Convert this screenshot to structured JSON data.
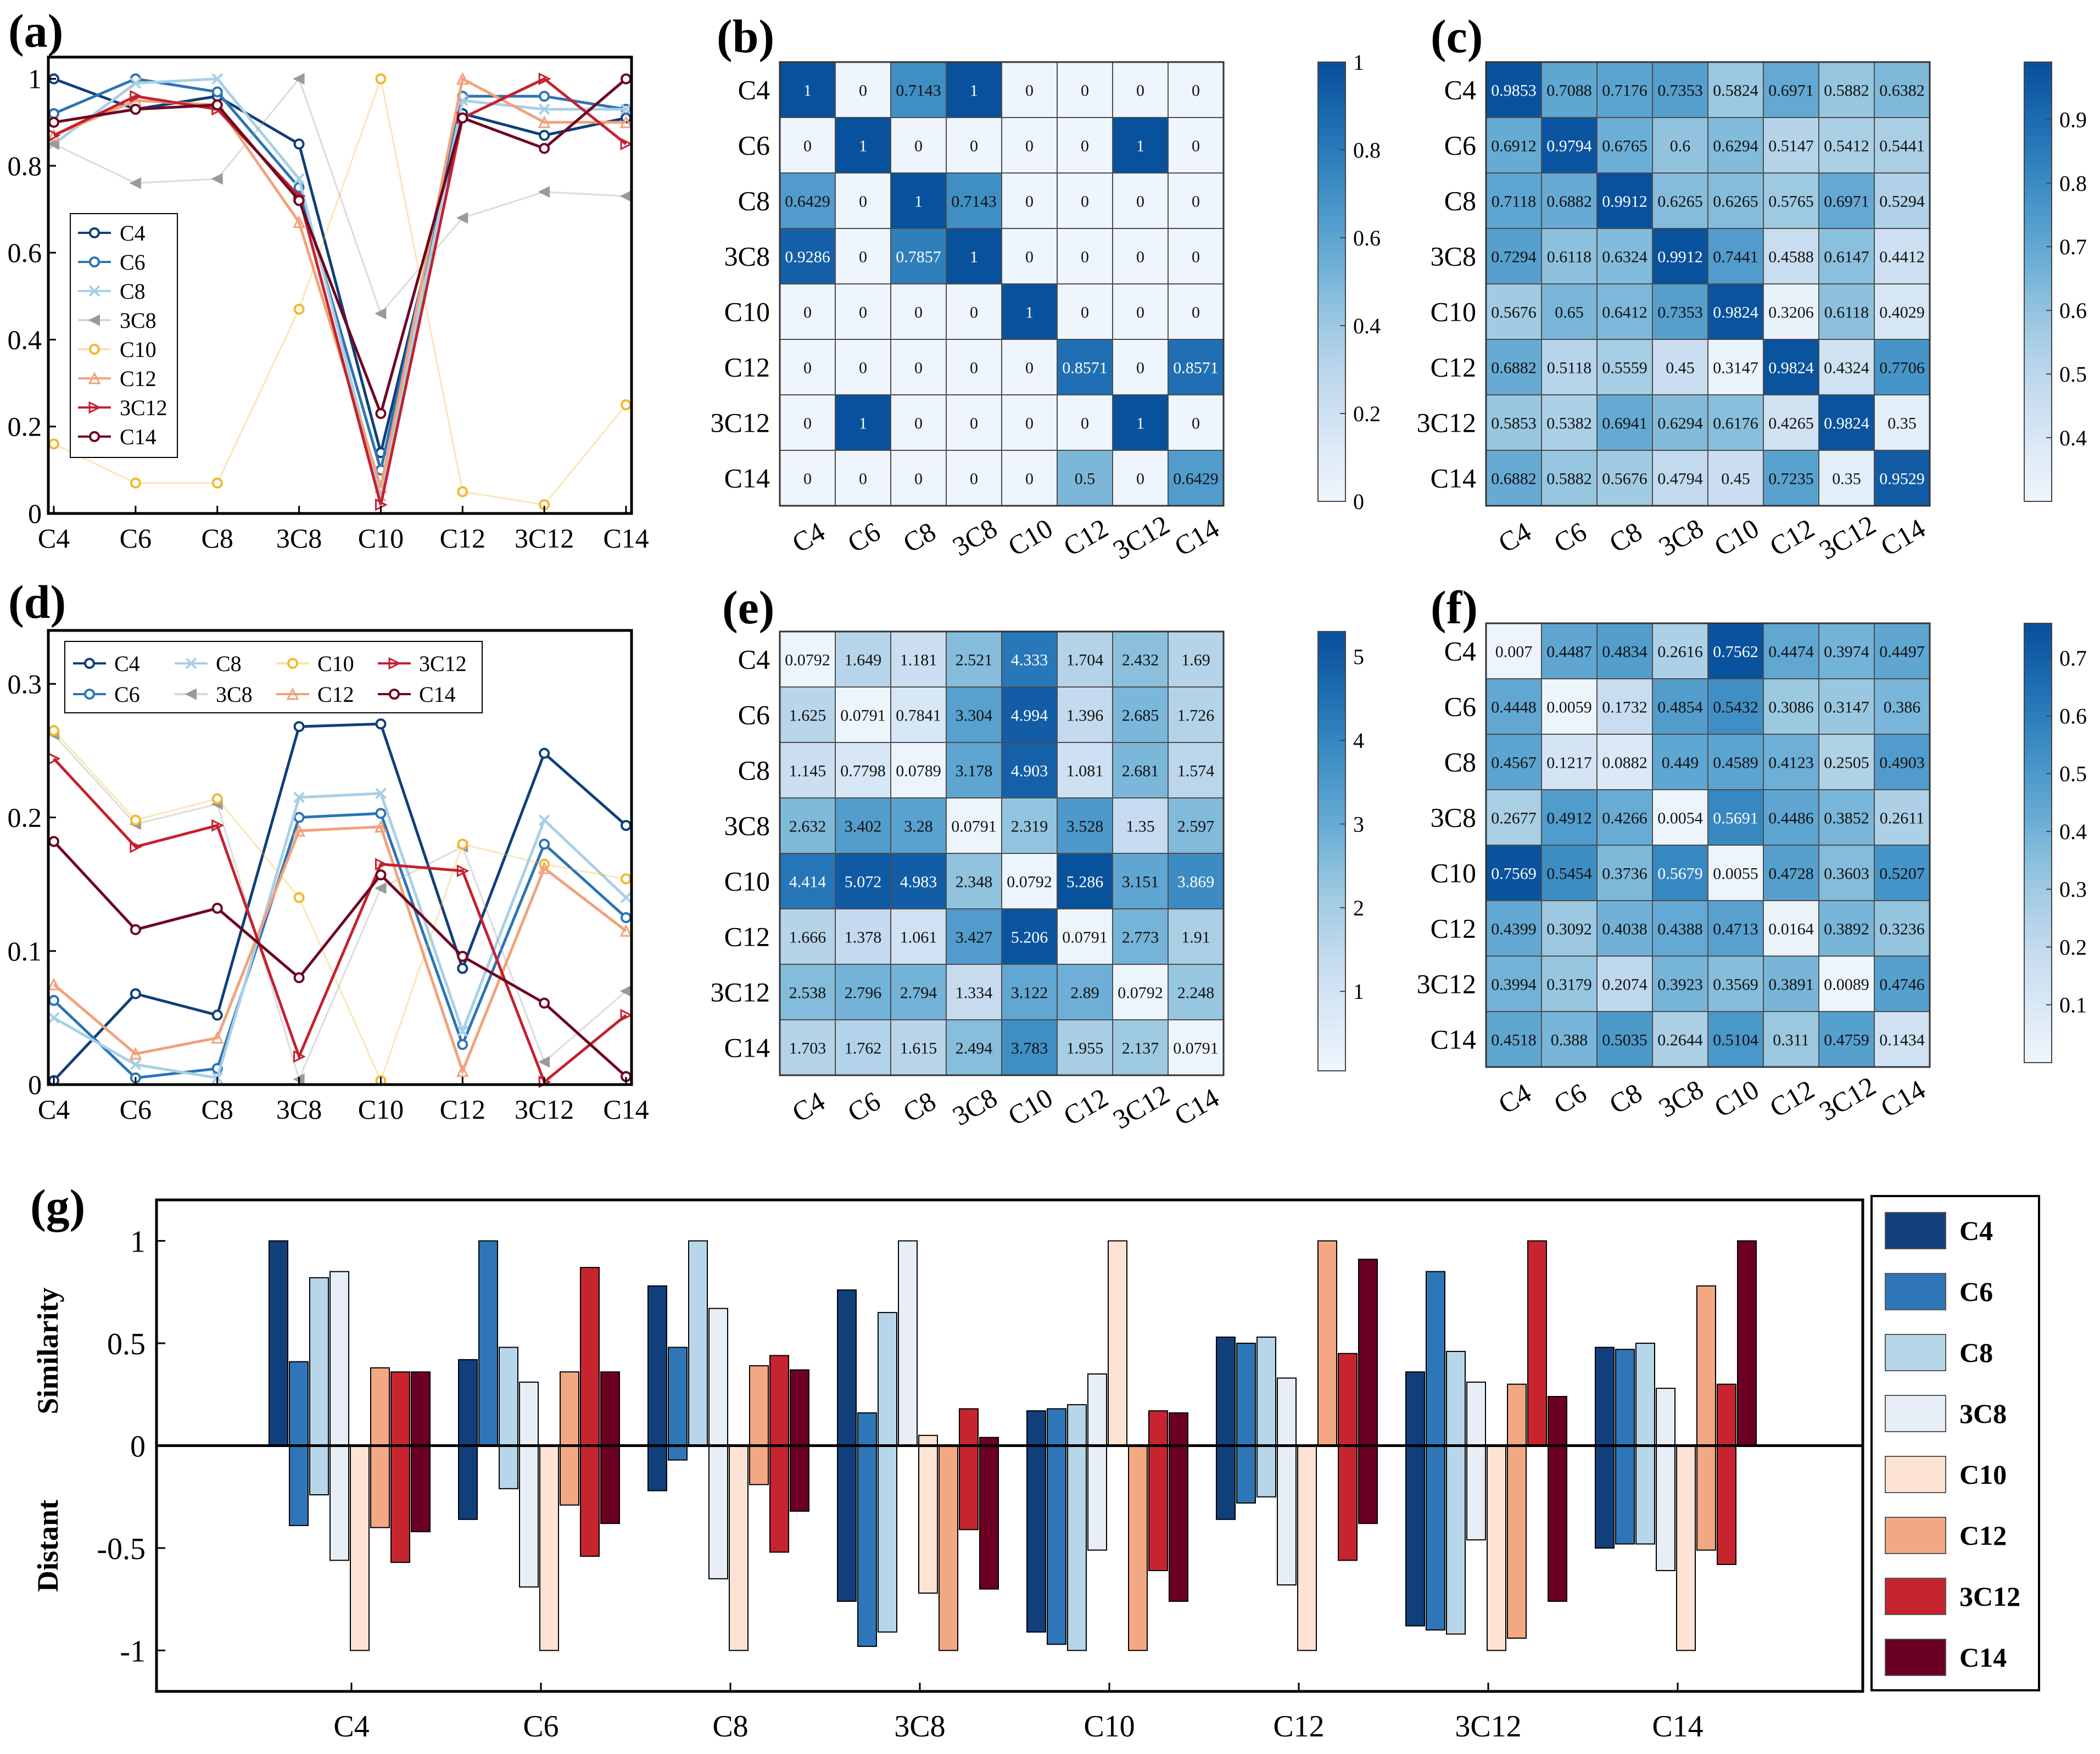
{
  "labels": {
    "a": "(a)",
    "b": "(b)",
    "c": "(c)",
    "d": "(d)",
    "e": "(e)",
    "f": "(f)",
    "g": "(g)"
  },
  "categories": [
    "C4",
    "C6",
    "C8",
    "3C8",
    "C10",
    "C12",
    "3C12",
    "C14"
  ],
  "series_colors": {
    "C4": "#0e3f7a",
    "C6": "#2c74b5",
    "C8": "#a8cfe6",
    "3C8": "#9a9a9a",
    "C10": "#f2b833",
    "C12": "#f1a27a",
    "3C12": "#c4212f",
    "C14": "#6e0620"
  },
  "bar_colors": {
    "C4": "#113f7b",
    "C6": "#2f76b8",
    "C8": "#b7d6ea",
    "3C8": "#e7eef6",
    "C10": "#fde3d3",
    "C12": "#f3a884",
    "3C12": "#c6252f",
    "C14": "#6b0022"
  },
  "chart_data": [
    {
      "id": "a",
      "type": "line",
      "categories": [
        "C4",
        "C6",
        "C8",
        "3C8",
        "C10",
        "C12",
        "3C12",
        "C14"
      ],
      "ylim": [
        0,
        1.05
      ],
      "yticks": [
        "0",
        "0.2",
        "0.4",
        "0.6",
        "0.8",
        "1"
      ],
      "legend": "left",
      "series": [
        {
          "name": "C4",
          "values": [
            1.0,
            0.93,
            0.96,
            0.85,
            0.14,
            0.92,
            0.87,
            0.91
          ]
        },
        {
          "name": "C6",
          "values": [
            0.92,
            1.0,
            0.97,
            0.75,
            0.1,
            0.96,
            0.96,
            0.93
          ]
        },
        {
          "name": "C8",
          "values": [
            0.85,
            0.99,
            1.0,
            0.77,
            0.04,
            0.95,
            0.93,
            0.93
          ]
        },
        {
          "name": "3C8",
          "values": [
            0.85,
            0.76,
            0.77,
            1.0,
            0.46,
            0.68,
            0.74,
            0.73
          ]
        },
        {
          "name": "C10",
          "values": [
            0.16,
            0.07,
            0.07,
            0.47,
            1.0,
            0.05,
            0.02,
            0.25
          ]
        },
        {
          "name": "C12",
          "values": [
            0.87,
            0.95,
            0.94,
            0.67,
            0.06,
            1.0,
            0.9,
            0.9
          ]
        },
        {
          "name": "3C12",
          "values": [
            0.87,
            0.96,
            0.93,
            0.73,
            0.02,
            0.91,
            1.0,
            0.85
          ]
        },
        {
          "name": "C14",
          "values": [
            0.9,
            0.93,
            0.94,
            0.72,
            0.23,
            0.91,
            0.84,
            1.0
          ]
        }
      ]
    },
    {
      "id": "b",
      "type": "heatmap",
      "categories": [
        "C4",
        "C6",
        "C8",
        "3C8",
        "C10",
        "C12",
        "3C12",
        "C14"
      ],
      "vmin": 0,
      "vmax": 1,
      "cbar_ticks": [
        "0",
        "0.2",
        "0.4",
        "0.6",
        "0.8",
        "1"
      ],
      "cbar_values": [
        0,
        0.2,
        0.4,
        0.6,
        0.8,
        1
      ],
      "matrix": [
        [
          "1",
          "0",
          "0.7143",
          "1",
          "0",
          "0",
          "0",
          "0"
        ],
        [
          "0",
          "1",
          "0",
          "0",
          "0",
          "0",
          "1",
          "0"
        ],
        [
          "0.6429",
          "0",
          "1",
          "0.7143",
          "0",
          "0",
          "0",
          "0"
        ],
        [
          "0.9286",
          "0",
          "0.7857",
          "1",
          "0",
          "0",
          "0",
          "0"
        ],
        [
          "0",
          "0",
          "0",
          "0",
          "1",
          "0",
          "0",
          "0"
        ],
        [
          "0",
          "0",
          "0",
          "0",
          "0",
          "0.8571",
          "0",
          "0.8571"
        ],
        [
          "0",
          "1",
          "0",
          "0",
          "0",
          "0",
          "1",
          "0"
        ],
        [
          "0",
          "0",
          "0",
          "0",
          "0",
          "0.5",
          "0",
          "0.6429"
        ]
      ]
    },
    {
      "id": "c",
      "type": "heatmap",
      "categories": [
        "C4",
        "C6",
        "C8",
        "3C8",
        "C10",
        "C12",
        "3C12",
        "C14"
      ],
      "vmin": 0.3,
      "vmax": 0.99,
      "cbar_ticks": [
        "0.4",
        "0.5",
        "0.6",
        "0.7",
        "0.8",
        "0.9"
      ],
      "cbar_values": [
        0.4,
        0.5,
        0.6,
        0.7,
        0.8,
        0.9
      ],
      "matrix": [
        [
          "0.9853",
          "0.7088",
          "0.7176",
          "0.7353",
          "0.5824",
          "0.6971",
          "0.5882",
          "0.6382"
        ],
        [
          "0.6912",
          "0.9794",
          "0.6765",
          "0.6",
          "0.6294",
          "0.5147",
          "0.5412",
          "0.5441"
        ],
        [
          "0.7118",
          "0.6882",
          "0.9912",
          "0.6265",
          "0.6265",
          "0.5765",
          "0.6971",
          "0.5294"
        ],
        [
          "0.7294",
          "0.6118",
          "0.6324",
          "0.9912",
          "0.7441",
          "0.4588",
          "0.6147",
          "0.4412"
        ],
        [
          "0.5676",
          "0.65",
          "0.6412",
          "0.7353",
          "0.9824",
          "0.3206",
          "0.6118",
          "0.4029"
        ],
        [
          "0.6882",
          "0.5118",
          "0.5559",
          "0.45",
          "0.3147",
          "0.9824",
          "0.4324",
          "0.7706"
        ],
        [
          "0.5853",
          "0.5382",
          "0.6941",
          "0.6294",
          "0.6176",
          "0.4265",
          "0.9824",
          "0.35"
        ],
        [
          "0.6882",
          "0.5882",
          "0.5676",
          "0.4794",
          "0.45",
          "0.7235",
          "0.35",
          "0.9529"
        ]
      ]
    },
    {
      "id": "d",
      "type": "line",
      "categories": [
        "C4",
        "C6",
        "C8",
        "3C8",
        "C10",
        "C12",
        "3C12",
        "C14"
      ],
      "ylim": [
        0,
        0.34
      ],
      "yticks": [
        "0",
        "0.1",
        "0.2",
        "0.3"
      ],
      "legend": "top",
      "series": [
        {
          "name": "C4",
          "values": [
            0.003,
            0.068,
            0.052,
            0.268,
            0.27,
            0.087,
            0.248,
            0.194
          ]
        },
        {
          "name": "C6",
          "values": [
            0.063,
            0.005,
            0.012,
            0.2,
            0.203,
            0.03,
            0.18,
            0.125
          ]
        },
        {
          "name": "C8",
          "values": [
            0.05,
            0.015,
            0.005,
            0.215,
            0.218,
            0.04,
            0.198,
            0.14
          ]
        },
        {
          "name": "3C8",
          "values": [
            0.262,
            0.195,
            0.21,
            0.004,
            0.147,
            0.178,
            0.017,
            0.07
          ]
        },
        {
          "name": "C10",
          "values": [
            0.265,
            0.198,
            0.214,
            0.14,
            0.003,
            0.18,
            0.165,
            0.154
          ]
        },
        {
          "name": "C12",
          "values": [
            0.075,
            0.023,
            0.035,
            0.19,
            0.193,
            0.01,
            0.162,
            0.115
          ]
        },
        {
          "name": "3C12",
          "values": [
            0.244,
            0.178,
            0.194,
            0.021,
            0.165,
            0.16,
            0.002,
            0.052
          ]
        },
        {
          "name": "C14",
          "values": [
            0.182,
            0.116,
            0.132,
            0.08,
            0.157,
            0.096,
            0.061,
            0.006
          ]
        }
      ]
    },
    {
      "id": "e",
      "type": "heatmap",
      "categories": [
        "C4",
        "C6",
        "C8",
        "3C8",
        "C10",
        "C12",
        "3C12",
        "C14"
      ],
      "vmin": 0.05,
      "vmax": 5.3,
      "cbar_ticks": [
        "1",
        "2",
        "3",
        "4",
        "5"
      ],
      "cbar_values": [
        1,
        2,
        3,
        4,
        5
      ],
      "matrix": [
        [
          "0.0792",
          "1.649",
          "1.181",
          "2.521",
          "4.333",
          "1.704",
          "2.432",
          "1.69"
        ],
        [
          "1.625",
          "0.0791",
          "0.7841",
          "3.304",
          "4.994",
          "1.396",
          "2.685",
          "1.726"
        ],
        [
          "1.145",
          "0.7798",
          "0.0789",
          "3.178",
          "4.903",
          "1.081",
          "2.681",
          "1.574"
        ],
        [
          "2.632",
          "3.402",
          "3.28",
          "0.0791",
          "2.319",
          "3.528",
          "1.35",
          "2.597"
        ],
        [
          "4.414",
          "5.072",
          "4.983",
          "2.348",
          "0.0792",
          "5.286",
          "3.151",
          "3.869"
        ],
        [
          "1.666",
          "1.378",
          "1.061",
          "3.427",
          "5.206",
          "0.0791",
          "2.773",
          "1.91"
        ],
        [
          "2.538",
          "2.796",
          "2.794",
          "1.334",
          "3.122",
          "2.89",
          "0.0792",
          "2.248"
        ],
        [
          "1.703",
          "1.762",
          "1.615",
          "2.494",
          "3.783",
          "1.955",
          "2.137",
          "0.0791"
        ]
      ]
    },
    {
      "id": "f",
      "type": "heatmap",
      "categories": [
        "C4",
        "C6",
        "C8",
        "3C8",
        "C10",
        "C12",
        "3C12",
        "C14"
      ],
      "vmin": 0.0,
      "vmax": 0.76,
      "cbar_ticks": [
        "0.1",
        "0.2",
        "0.3",
        "0.4",
        "0.5",
        "0.6",
        "0.7"
      ],
      "cbar_values": [
        0.1,
        0.2,
        0.3,
        0.4,
        0.5,
        0.6,
        0.7
      ],
      "matrix": [
        [
          "0.007",
          "0.4487",
          "0.4834",
          "0.2616",
          "0.7562",
          "0.4474",
          "0.3974",
          "0.4497"
        ],
        [
          "0.4448",
          "0.0059",
          "0.1732",
          "0.4854",
          "0.5432",
          "0.3086",
          "0.3147",
          "0.386"
        ],
        [
          "0.4567",
          "0.1217",
          "0.0882",
          "0.449",
          "0.4589",
          "0.4123",
          "0.2505",
          "0.4903"
        ],
        [
          "0.2677",
          "0.4912",
          "0.4266",
          "0.0054",
          "0.5691",
          "0.4486",
          "0.3852",
          "0.2611"
        ],
        [
          "0.7569",
          "0.5454",
          "0.3736",
          "0.5679",
          "0.0055",
          "0.4728",
          "0.3603",
          "0.5207"
        ],
        [
          "0.4399",
          "0.3092",
          "0.4038",
          "0.4388",
          "0.4713",
          "0.0164",
          "0.3892",
          "0.3236"
        ],
        [
          "0.3994",
          "0.3179",
          "0.2074",
          "0.3923",
          "0.3569",
          "0.3891",
          "0.0089",
          "0.4746"
        ],
        [
          "0.4518",
          "0.388",
          "0.5035",
          "0.2644",
          "0.5104",
          "0.311",
          "0.4759",
          "0.1434"
        ]
      ]
    },
    {
      "id": "g",
      "type": "bar",
      "categories": [
        "C4",
        "C6",
        "C8",
        "3C8",
        "C10",
        "C12",
        "3C12",
        "C14"
      ],
      "ylim": [
        -1.2,
        1.2
      ],
      "yticks": [
        "-1",
        "-0.5",
        "0",
        "0.5",
        "1"
      ],
      "ytick_values": [
        -1,
        -0.5,
        0,
        0.5,
        1
      ],
      "ylabel_pos": "Similarity",
      "ylabel_neg": "Distant",
      "legend": "right",
      "series_names": [
        "C4",
        "C6",
        "C8",
        "3C8",
        "C10",
        "C12",
        "3C12",
        "C14"
      ],
      "positive": [
        [
          1.0,
          0.41,
          0.82,
          0.85,
          0.0,
          0.38,
          0.36,
          0.36
        ],
        [
          0.42,
          1.0,
          0.48,
          0.31,
          0.0,
          0.36,
          0.87,
          0.36
        ],
        [
          0.78,
          0.48,
          1.0,
          0.67,
          0.0,
          0.39,
          0.44,
          0.37
        ],
        [
          0.76,
          0.16,
          0.65,
          1.0,
          0.05,
          0.0,
          0.18,
          0.04
        ],
        [
          0.17,
          0.18,
          0.2,
          0.35,
          1.0,
          0.0,
          0.17,
          0.16
        ],
        [
          0.53,
          0.5,
          0.53,
          0.33,
          0.0,
          1.0,
          0.45,
          0.91
        ],
        [
          0.36,
          0.85,
          0.46,
          0.31,
          0.0,
          0.3,
          1.0,
          0.24
        ],
        [
          0.48,
          0.47,
          0.5,
          0.28,
          0.0,
          0.78,
          0.3,
          1.0
        ]
      ],
      "negative": [
        [
          0.0,
          -0.39,
          -0.24,
          -0.56,
          -1.0,
          -0.4,
          -0.57,
          -0.42
        ],
        [
          -0.36,
          0.0,
          -0.21,
          -0.69,
          -1.0,
          -0.29,
          -0.54,
          -0.38
        ],
        [
          -0.22,
          -0.07,
          0.0,
          -0.65,
          -1.0,
          -0.19,
          -0.52,
          -0.32
        ],
        [
          -0.76,
          -0.98,
          -0.91,
          0.0,
          -0.72,
          -1.0,
          -0.41,
          -0.7
        ],
        [
          -0.91,
          -0.97,
          -1.0,
          -0.51,
          0.0,
          -1.0,
          -0.61,
          -0.76
        ],
        [
          -0.36,
          -0.28,
          -0.25,
          -0.68,
          -1.0,
          0.0,
          -0.56,
          -0.38
        ],
        [
          -0.88,
          -0.9,
          -0.92,
          -0.46,
          -1.0,
          -0.94,
          0.0,
          -0.76
        ],
        [
          -0.5,
          -0.48,
          -0.48,
          -0.61,
          -1.0,
          -0.51,
          -0.58,
          0.0
        ]
      ]
    }
  ]
}
